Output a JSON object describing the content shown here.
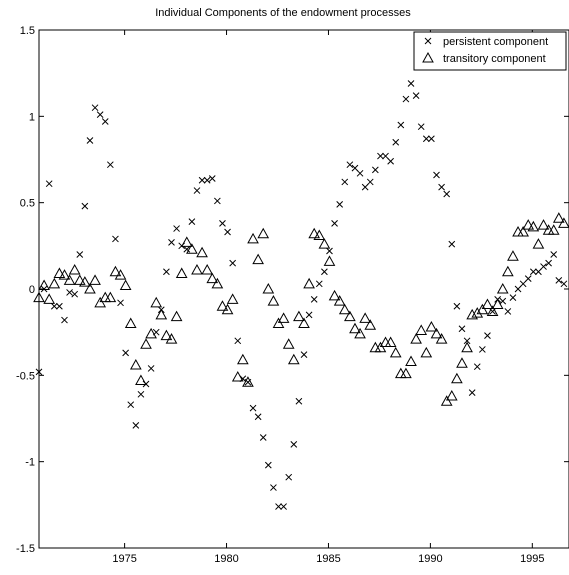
{
  "chart_data": {
    "type": "scatter",
    "title": "Individual Components of the endowment processes",
    "xlabel": "",
    "ylabel": "",
    "xlim": [
      1970.8,
      1996.8
    ],
    "ylim": [
      -1.5,
      1.5
    ],
    "xticks": [
      1975,
      1980,
      1985,
      1990,
      1995
    ],
    "xtick_labels": [
      "1975",
      "1980",
      "1985",
      "1990",
      "1995"
    ],
    "yticks": [
      -1.5,
      -1,
      -0.5,
      0,
      0.5,
      1,
      1.5
    ],
    "ytick_labels": [
      "-1.5",
      "-1",
      "-0.5",
      "0",
      "0.5",
      "1",
      "1.5"
    ],
    "grid": false,
    "legend_position": "top-right",
    "series": [
      {
        "name": "persistent component",
        "marker": "x",
        "x": [
          1970.8,
          1971.05,
          1971.3,
          1971.55,
          1971.8,
          1972.05,
          1972.3,
          1972.55,
          1972.8,
          1973.05,
          1973.3,
          1973.55,
          1973.8,
          1974.05,
          1974.3,
          1974.55,
          1974.8,
          1975.05,
          1975.3,
          1975.55,
          1975.8,
          1976.05,
          1976.3,
          1976.55,
          1976.8,
          1977.05,
          1977.3,
          1977.55,
          1977.8,
          1978.05,
          1978.3,
          1978.55,
          1978.8,
          1979.05,
          1979.3,
          1979.55,
          1979.8,
          1980.05,
          1980.3,
          1980.55,
          1980.8,
          1981.05,
          1981.3,
          1981.55,
          1981.8,
          1982.05,
          1982.3,
          1982.55,
          1982.8,
          1983.05,
          1983.3,
          1983.55,
          1983.8,
          1984.05,
          1984.3,
          1984.55,
          1984.8,
          1985.05,
          1985.3,
          1985.55,
          1985.8,
          1986.05,
          1986.3,
          1986.55,
          1986.8,
          1987.05,
          1987.3,
          1987.55,
          1987.8,
          1988.05,
          1988.3,
          1988.55,
          1988.8,
          1989.05,
          1989.3,
          1989.55,
          1989.8,
          1990.05,
          1990.3,
          1990.55,
          1990.8,
          1991.05,
          1991.3,
          1991.55,
          1991.8,
          1992.05,
          1992.3,
          1992.55,
          1992.8,
          1993.05,
          1993.3,
          1993.55,
          1993.8,
          1994.05,
          1994.3,
          1994.55,
          1994.8,
          1995.05,
          1995.3,
          1995.55,
          1995.8,
          1996.05,
          1996.3,
          1996.55
        ],
        "y": [
          -0.48,
          0.0,
          0.61,
          -0.1,
          -0.1,
          -0.18,
          -0.02,
          -0.03,
          0.2,
          0.48,
          0.86,
          1.05,
          1.01,
          0.97,
          0.72,
          0.29,
          -0.08,
          -0.37,
          -0.67,
          -0.79,
          -0.61,
          -0.55,
          -0.46,
          -0.25,
          -0.12,
          0.1,
          0.27,
          0.35,
          0.25,
          0.23,
          0.39,
          0.57,
          0.63,
          0.63,
          0.64,
          0.51,
          0.38,
          0.33,
          0.15,
          -0.3,
          -0.52,
          -0.54,
          -0.69,
          -0.74,
          -0.86,
          -1.02,
          -1.15,
          -1.26,
          -1.26,
          -1.09,
          -0.9,
          -0.65,
          -0.38,
          -0.15,
          -0.06,
          0.03,
          0.1,
          0.22,
          0.38,
          0.49,
          0.62,
          0.72,
          0.7,
          0.67,
          0.59,
          0.62,
          0.69,
          0.77,
          0.77,
          0.74,
          0.85,
          0.95,
          1.1,
          1.19,
          1.12,
          0.94,
          0.87,
          0.87,
          0.66,
          0.59,
          0.55,
          0.26,
          -0.1,
          -0.23,
          -0.3,
          -0.6,
          -0.45,
          -0.35,
          -0.27,
          -0.13,
          -0.06,
          -0.07,
          -0.13,
          -0.05,
          0.0,
          0.03,
          0.06,
          0.1,
          0.1,
          0.13,
          0.15,
          0.2,
          0.05,
          0.03
        ]
      },
      {
        "name": "transitory component",
        "marker": "triangle",
        "x": [
          1970.8,
          1971.05,
          1971.3,
          1971.55,
          1971.8,
          1972.05,
          1972.3,
          1972.55,
          1972.8,
          1973.05,
          1973.3,
          1973.55,
          1973.8,
          1974.05,
          1974.3,
          1974.55,
          1974.8,
          1975.05,
          1975.3,
          1975.55,
          1975.8,
          1976.05,
          1976.3,
          1976.55,
          1976.8,
          1977.05,
          1977.3,
          1977.55,
          1977.8,
          1978.05,
          1978.3,
          1978.55,
          1978.8,
          1979.05,
          1979.3,
          1979.55,
          1979.8,
          1980.05,
          1980.3,
          1980.55,
          1980.8,
          1981.05,
          1981.3,
          1981.55,
          1981.8,
          1982.05,
          1982.3,
          1982.55,
          1982.8,
          1983.05,
          1983.3,
          1983.55,
          1983.8,
          1984.05,
          1984.3,
          1984.55,
          1984.8,
          1985.05,
          1985.3,
          1985.55,
          1985.8,
          1986.05,
          1986.3,
          1986.55,
          1986.8,
          1987.05,
          1987.3,
          1987.55,
          1987.8,
          1988.05,
          1988.3,
          1988.55,
          1988.8,
          1989.05,
          1989.3,
          1989.55,
          1989.8,
          1990.05,
          1990.3,
          1990.55,
          1990.8,
          1991.05,
          1991.3,
          1991.55,
          1991.8,
          1992.05,
          1992.3,
          1992.55,
          1992.8,
          1993.05,
          1993.3,
          1993.55,
          1993.8,
          1994.05,
          1994.3,
          1994.55,
          1994.8,
          1995.05,
          1995.3,
          1995.55,
          1995.8,
          1996.05,
          1996.3,
          1996.55
        ],
        "y": [
          -0.05,
          0.02,
          -0.06,
          0.03,
          0.09,
          0.08,
          0.05,
          0.11,
          0.05,
          0.04,
          0.0,
          0.05,
          -0.08,
          -0.05,
          -0.05,
          0.1,
          0.08,
          0.02,
          -0.2,
          -0.44,
          -0.53,
          -0.32,
          -0.26,
          -0.08,
          -0.15,
          -0.27,
          -0.29,
          -0.16,
          0.09,
          0.27,
          0.23,
          0.11,
          0.21,
          0.11,
          0.06,
          0.03,
          -0.1,
          -0.12,
          -0.06,
          -0.51,
          -0.41,
          -0.54,
          0.29,
          0.17,
          0.32,
          0.0,
          -0.07,
          -0.2,
          -0.17,
          -0.32,
          -0.41,
          -0.16,
          -0.2,
          0.03,
          0.32,
          0.31,
          0.26,
          0.16,
          -0.04,
          -0.07,
          -0.12,
          -0.16,
          -0.23,
          -0.26,
          -0.17,
          -0.21,
          -0.34,
          -0.34,
          -0.31,
          -0.31,
          -0.37,
          -0.49,
          -0.49,
          -0.42,
          -0.29,
          -0.24,
          -0.37,
          -0.22,
          -0.26,
          -0.29,
          -0.65,
          -0.62,
          -0.52,
          -0.43,
          -0.34,
          -0.15,
          -0.14,
          -0.12,
          -0.09,
          -0.13,
          -0.09,
          0.0,
          0.1,
          0.19,
          0.33,
          0.33,
          0.37,
          0.36,
          0.26,
          0.37,
          0.34,
          0.34,
          0.41,
          0.38
        ]
      }
    ]
  }
}
